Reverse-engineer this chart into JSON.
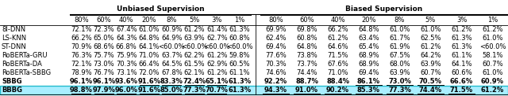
{
  "header1": "Unbiased Supervision",
  "header2": "Biased Supervision",
  "col_headers": [
    "80%",
    "60%",
    "40%",
    "20%",
    "8%",
    "5%",
    "3%",
    "1%",
    "80%",
    "60%",
    "40%",
    "20%",
    "8%",
    "5%",
    "3%",
    "1%"
  ],
  "row_labels": [
    "8I-DNN",
    "LS-KNN",
    "ST-DNN",
    "RoBERTa-GRU",
    "RoBERTa-DA",
    "RoBERTa-SBBG",
    "SBBG",
    "BBBG"
  ],
  "unbiased": [
    [
      "72.1%",
      "72.3%",
      "67.4%",
      "61.0%",
      "60.9%",
      "61.2%",
      "61.4%",
      "61.3%"
    ],
    [
      "66.2%",
      "65.0%",
      "64.3%",
      "64.8%",
      "64.9%",
      "63.9%",
      "62.7%",
      "60.8%"
    ],
    [
      "70.9%",
      "68.6%",
      "66.8%",
      "64.1%",
      "<60.0%",
      "<60.0%",
      "<60.0%",
      "<60.0%"
    ],
    [
      "76.3%",
      "75.7%",
      "75.9%",
      "71.0%",
      "63.7%",
      "62.2%",
      "61.2%",
      "59.8%"
    ],
    [
      "72.1%",
      "73.0%",
      "70.3%",
      "66.4%",
      "64.5%",
      "61.5%",
      "62.9%",
      "60.5%"
    ],
    [
      "78.9%",
      "76.7%",
      "73.1%",
      "72.0%",
      "67.8%",
      "62.1%",
      "61.2%",
      "61.1%"
    ],
    [
      "96.1%",
      "96.1%",
      "93.6%",
      "91.6%",
      "83.3%",
      "72.4%",
      "65.1%",
      "61.3%"
    ],
    [
      "98.8%",
      "97.9%",
      "96.0%",
      "91.6%",
      "85.0%",
      "77.3%",
      "70.7%",
      "61.3%"
    ]
  ],
  "biased": [
    [
      "69.9%",
      "69.8%",
      "66.2%",
      "64.8%",
      "61.0%",
      "61.0%",
      "61.2%",
      "61.2%"
    ],
    [
      "62.4%",
      "60.8%",
      "61.2%",
      "63.4%",
      "61.7%",
      "62.5%",
      "61.3%",
      "61.0%"
    ],
    [
      "69.4%",
      "64.8%",
      "64.6%",
      "65.4%",
      "61.9%",
      "61.2%",
      "61.3%",
      "<60.0%"
    ],
    [
      "77.6%",
      "73.8%",
      "71.5%",
      "68.9%",
      "67.5%",
      "64.2%",
      "61.1%",
      "58.1%"
    ],
    [
      "70.3%",
      "73.7%",
      "67.6%",
      "68.9%",
      "68.0%",
      "63.9%",
      "64.1%",
      "60.7%"
    ],
    [
      "74.6%",
      "74.4%",
      "71.0%",
      "69.4%",
      "63.9%",
      "60.7%",
      "60.6%",
      "61.0%"
    ],
    [
      "92.2%",
      "88.7%",
      "88.4%",
      "86.1%",
      "73.0%",
      "70.5%",
      "66.6%",
      "60.9%"
    ],
    [
      "94.3%",
      "91.0%",
      "90.2%",
      "85.3%",
      "77.3%",
      "74.4%",
      "71.5%",
      "61.2%"
    ]
  ],
  "highlight_row": 7,
  "highlight_color": "#aaeeff",
  "highlight_border": "#22bbcc",
  "bold_rows": [
    6,
    7
  ],
  "underline_cells_unbiased": [
    [
      6,
      3
    ],
    [
      6,
      4
    ],
    [
      6,
      5
    ],
    [
      6,
      6
    ],
    [
      7,
      0
    ],
    [
      7,
      1
    ],
    [
      7,
      2
    ],
    [
      7,
      3
    ],
    [
      7,
      4
    ],
    [
      7,
      5
    ],
    [
      7,
      6
    ]
  ],
  "underline_cells_biased": [
    [
      6,
      3
    ],
    [
      6,
      4
    ],
    [
      6,
      5
    ],
    [
      7,
      0
    ],
    [
      7,
      1
    ],
    [
      7,
      2
    ],
    [
      7,
      3
    ],
    [
      7,
      4
    ],
    [
      7,
      5
    ],
    [
      7,
      6
    ]
  ],
  "bg_color": "#ffffff",
  "text_color": "#000000",
  "font_size": 6.0,
  "header_font_size": 6.5
}
